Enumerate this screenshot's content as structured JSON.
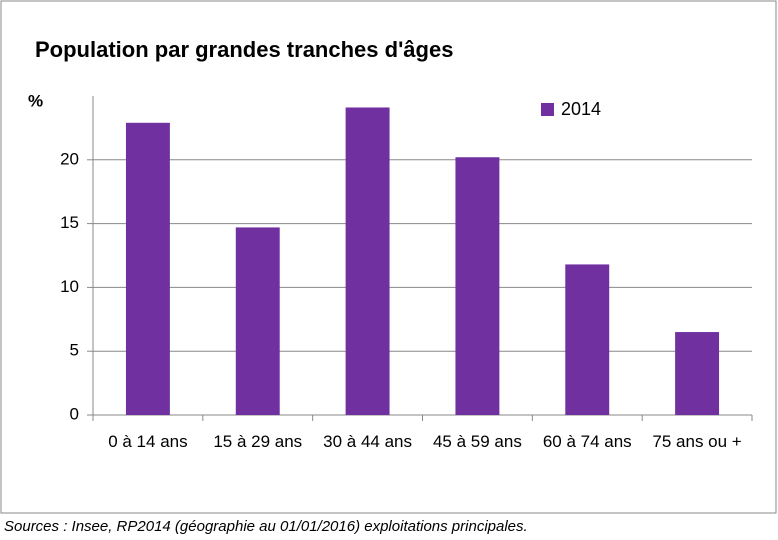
{
  "chart_data": {
    "type": "bar",
    "title": "Population par grandes tranches d'âges",
    "y_label": "%",
    "categories": [
      "0 à 14 ans",
      "15 à 29 ans",
      "30 à 44 ans",
      "45 à 59 ans",
      "60 à 74 ans",
      "75 ans ou +"
    ],
    "series": [
      {
        "name": "2014",
        "color": "#7030a0",
        "values": [
          22.9,
          14.7,
          24.1,
          20.2,
          11.8,
          6.5
        ]
      }
    ],
    "ylim": [
      0,
      25
    ],
    "yticks": [
      0,
      5,
      10,
      15,
      20
    ],
    "grid": true,
    "legend": "top-right",
    "source": "Sources : Insee, RP2014 (géographie au 01/01/2016) exploitations principales."
  }
}
